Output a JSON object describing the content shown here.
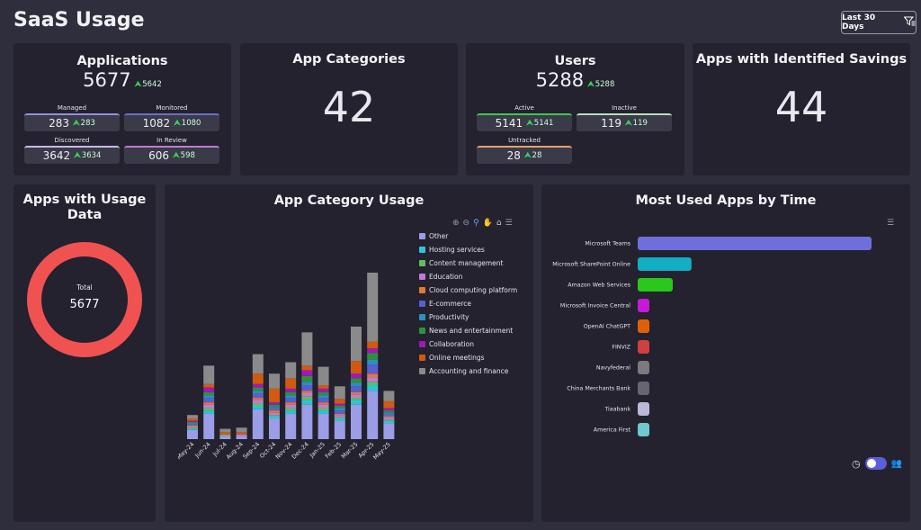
{
  "page": {
    "title": "SaaS Usage"
  },
  "filter": {
    "label": "Last 30 Days",
    "icon": "filter-icon"
  },
  "applications": {
    "title": "Applications",
    "total": "5677",
    "total_delta": "5642",
    "stats": [
      {
        "label": "Managed",
        "value": "283",
        "delta": "283",
        "color": "#8f90e0"
      },
      {
        "label": "Monitored",
        "value": "1082",
        "delta": "1080",
        "color": "#6c6ec8"
      },
      {
        "label": "Discovered",
        "value": "3642",
        "delta": "3634",
        "color": "#c7b8ee"
      },
      {
        "label": "In Review",
        "value": "606",
        "delta": "598",
        "color": "#c27ad8"
      }
    ]
  },
  "app_categories": {
    "title": "App Categories",
    "value": "42"
  },
  "users": {
    "title": "Users",
    "total": "5288",
    "total_delta": "5288",
    "stats": [
      {
        "label": "Active",
        "value": "5141",
        "delta": "5141",
        "color": "#3ec84d"
      },
      {
        "label": "Inactive",
        "value": "119",
        "delta": "119",
        "color": "#b8e0b8"
      },
      {
        "label": "Untracked",
        "value": "28",
        "delta": "28",
        "color": "#e8a070"
      }
    ]
  },
  "savings": {
    "title": "Apps with Identified Savings",
    "value": "44"
  },
  "usage_data": {
    "title_line1": "Apps with Usage",
    "title_line2": "Data",
    "center_label": "Total",
    "center_value": "5677",
    "ring_color": "#f05252"
  },
  "category_usage": {
    "title": "App Category Usage",
    "legend": [
      {
        "name": "Other",
        "color": "#9b9de6"
      },
      {
        "name": "Hosting services",
        "color": "#2ec4d6"
      },
      {
        "name": "Content management",
        "color": "#5fbf5f"
      },
      {
        "name": "Education",
        "color": "#c07ad6"
      },
      {
        "name": "Cloud computing platform",
        "color": "#e07b2e"
      },
      {
        "name": "E-commerce",
        "color": "#5a5fd0"
      },
      {
        "name": "Productivity",
        "color": "#2d8fc0"
      },
      {
        "name": "News and entertainment",
        "color": "#2f8f3f"
      },
      {
        "name": "Collaboration",
        "color": "#a018b8"
      },
      {
        "name": "Online meetings",
        "color": "#d05a10"
      },
      {
        "name": "Accounting and finance",
        "color": "#8a8a8a"
      }
    ]
  },
  "chart_data": [
    {
      "type": "bar",
      "stacked": true,
      "title": "App Category Usage",
      "categories": [
        "May-24",
        "Jun-24",
        "Jul-24",
        "Aug-24",
        "Sep-24",
        "Oct-24",
        "Nov-24",
        "Dec-24",
        "Jan-25",
        "Feb-25",
        "Mar-25",
        "Apr-25",
        "May-25"
      ],
      "series": [
        {
          "name": "Other",
          "values": [
            8,
            22,
            3,
            3,
            26,
            18,
            22,
            30,
            22,
            16,
            30,
            42,
            14
          ]
        },
        {
          "name": "Hosting services",
          "values": [
            1,
            3,
            0,
            0,
            3,
            2,
            3,
            4,
            3,
            2,
            4,
            5,
            2
          ]
        },
        {
          "name": "Content management",
          "values": [
            1,
            2,
            1,
            0,
            2,
            1,
            2,
            3,
            2,
            1,
            2,
            3,
            1
          ]
        },
        {
          "name": "Education",
          "values": [
            1,
            3,
            0,
            1,
            3,
            2,
            3,
            3,
            3,
            2,
            3,
            4,
            2
          ]
        },
        {
          "name": "Cloud computing platform",
          "values": [
            1,
            2,
            0,
            0,
            2,
            2,
            2,
            2,
            2,
            1,
            2,
            3,
            1
          ]
        },
        {
          "name": "E-commerce",
          "values": [
            1,
            4,
            0,
            0,
            4,
            2,
            4,
            5,
            4,
            3,
            5,
            8,
            2
          ]
        },
        {
          "name": "Productivity",
          "values": [
            1,
            2,
            0,
            0,
            2,
            1,
            2,
            3,
            2,
            2,
            3,
            4,
            1
          ]
        },
        {
          "name": "News and entertainment",
          "values": [
            1,
            3,
            0,
            0,
            3,
            2,
            3,
            5,
            3,
            2,
            4,
            6,
            2
          ]
        },
        {
          "name": "Collaboration",
          "values": [
            1,
            4,
            0,
            0,
            3,
            2,
            3,
            5,
            3,
            2,
            4,
            4,
            2
          ]
        },
        {
          "name": "Online meetings",
          "values": [
            2,
            3,
            2,
            2,
            9,
            12,
            9,
            4,
            3,
            4,
            11,
            6,
            6
          ]
        },
        {
          "name": "Accounting and finance",
          "values": [
            3,
            16,
            3,
            4,
            17,
            13,
            14,
            29,
            16,
            11,
            30,
            60,
            9
          ]
        }
      ]
    },
    {
      "type": "bar",
      "orientation": "horizontal",
      "title": "Most Used Apps by Time",
      "categories": [
        "Microsoft Teams",
        "Microsoft SharePoint Online",
        "Amazon Web Services",
        "Microsoft Invoice Central",
        "OpenAI ChatGPT",
        "FINVIZ",
        "Navyfederal",
        "China Merchants Bank",
        "Tiaabank",
        "America First"
      ],
      "values": [
        100,
        23,
        15,
        5,
        5,
        5,
        5,
        5,
        5,
        5
      ],
      "colors": [
        "#6f6fdc",
        "#12aec4",
        "#2ac81c",
        "#c61ad8",
        "#e0600a",
        "#d04040",
        "#7a7a80",
        "#666670",
        "#b8b8d8",
        "#6ec8d0"
      ]
    }
  ],
  "most_used": {
    "title": "Most Used Apps by Time",
    "time_icon": "clock-icon",
    "users_icon": "users-icon"
  }
}
